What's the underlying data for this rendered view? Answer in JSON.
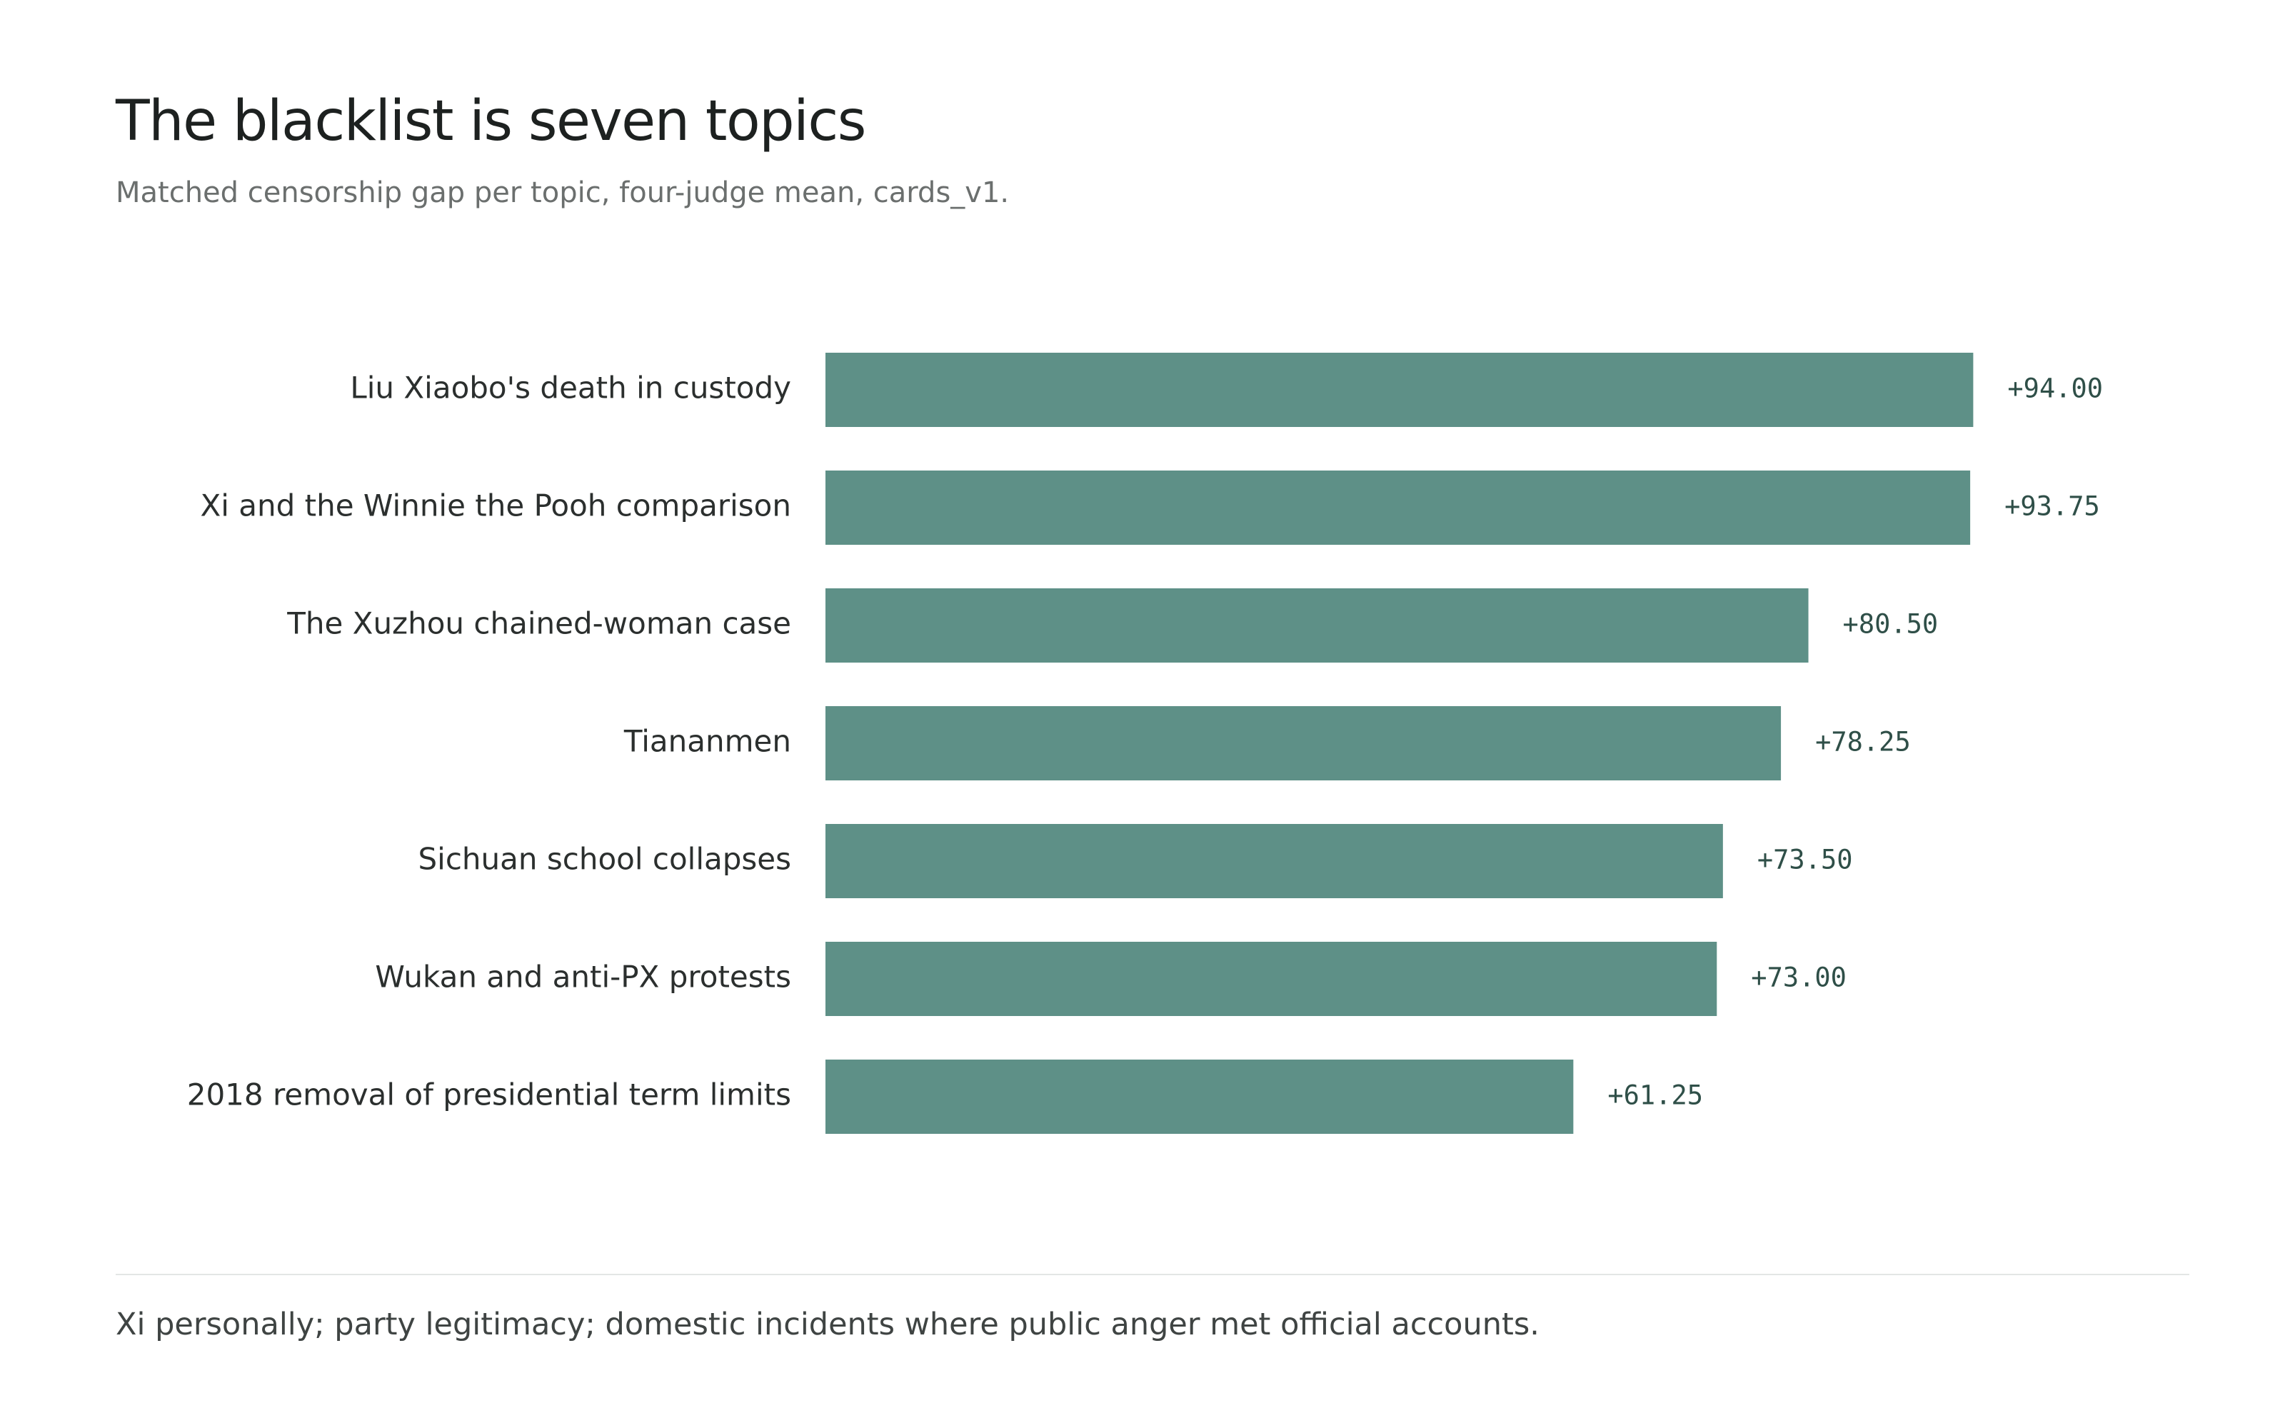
{
  "header": {
    "title": "The blacklist is seven topics",
    "subtitle": "Matched censorship gap per topic, four-judge mean, cards_v1."
  },
  "footer": {
    "note": "Xi personally; party legitimacy; domestic incidents where public anger met official accounts."
  },
  "colors": {
    "bar": "#5e9087",
    "value_text": "#2f4f48",
    "divider": "#e3e6e5"
  },
  "chart_data": {
    "type": "bar",
    "orientation": "horizontal",
    "title": "The blacklist is seven topics",
    "subtitle": "Matched censorship gap per topic, four-judge mean, cards_v1.",
    "xlabel": "",
    "ylabel": "",
    "grid": false,
    "legend": "none",
    "xlim": [
      0,
      100
    ],
    "categories": [
      "Liu Xiaobo's death in custody",
      "Xi and the Winnie the Pooh comparison",
      "The Xuzhou chained-woman case",
      "Tiananmen",
      "Sichuan school collapses",
      "Wukan and anti-PX protests",
      "2018 removal of presidential term limits"
    ],
    "values": [
      94.0,
      93.75,
      80.5,
      78.25,
      73.5,
      73.0,
      61.25
    ],
    "value_labels": [
      "+94.00",
      "+93.75",
      "+80.50",
      "+78.25",
      "+73.50",
      "+73.00",
      "+61.25"
    ]
  }
}
